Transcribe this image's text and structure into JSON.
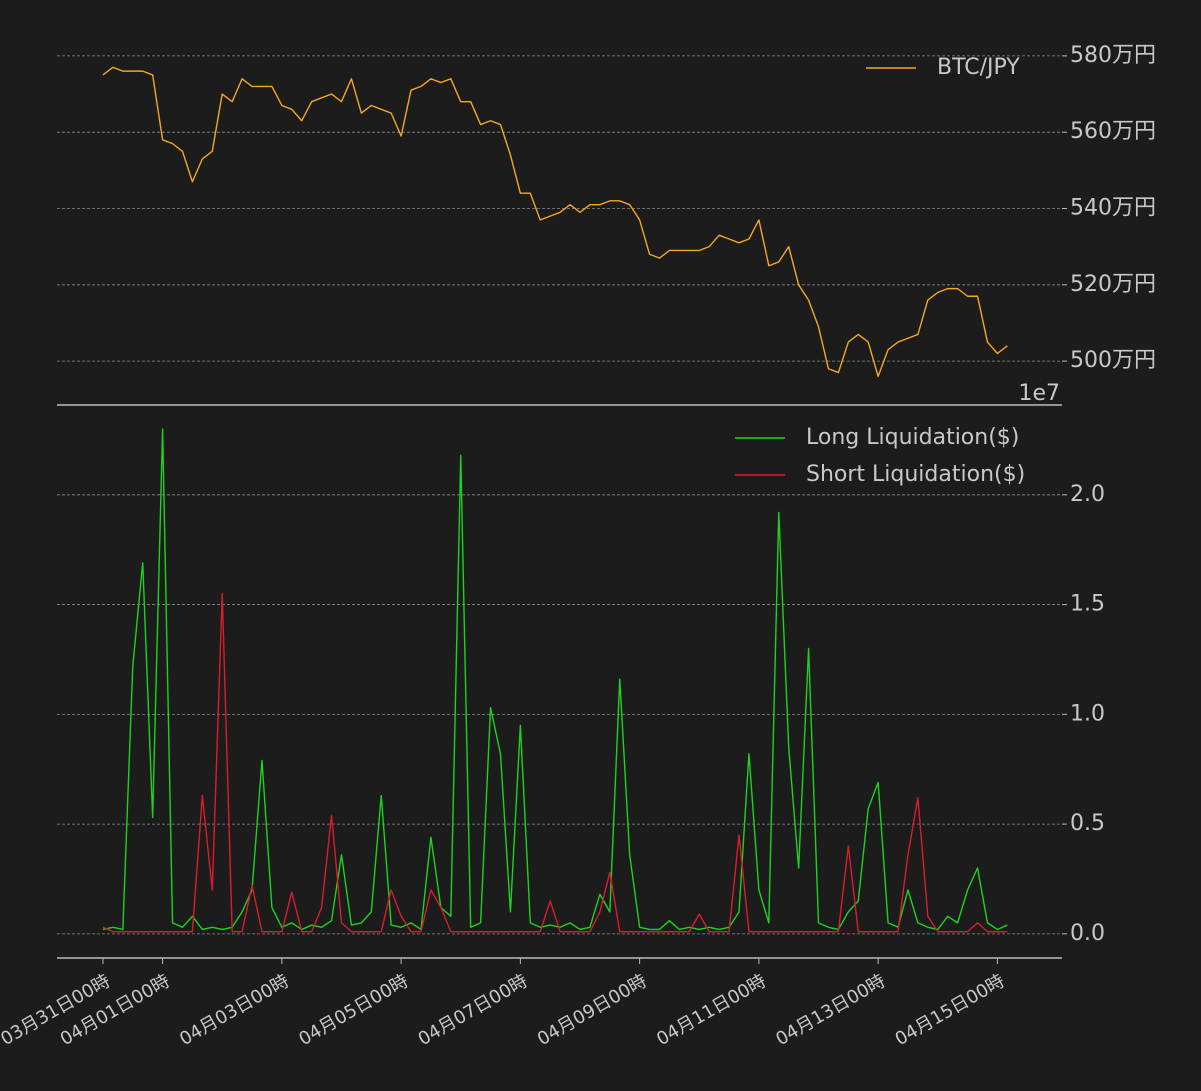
{
  "chart_data": [
    {
      "type": "line",
      "x": [
        "03-31 00:00",
        "03-31 04:00",
        "03-31 08:00",
        "03-31 12:00",
        "03-31 16:00",
        "03-31 20:00",
        "04-01 00:00",
        "04-01 04:00",
        "04-01 08:00",
        "04-01 12:00",
        "04-01 16:00",
        "04-01 20:00",
        "04-02 00:00",
        "04-02 04:00",
        "04-02 08:00",
        "04-02 12:00",
        "04-02 16:00",
        "04-02 20:00",
        "04-03 00:00",
        "04-03 04:00",
        "04-03 08:00",
        "04-03 12:00",
        "04-03 16:00",
        "04-03 20:00",
        "04-04 00:00",
        "04-04 04:00",
        "04-04 08:00",
        "04-04 12:00",
        "04-04 16:00",
        "04-04 20:00",
        "04-05 00:00",
        "04-05 04:00",
        "04-05 08:00",
        "04-05 12:00",
        "04-05 16:00",
        "04-05 20:00",
        "04-06 00:00",
        "04-06 04:00",
        "04-06 08:00",
        "04-06 12:00",
        "04-06 16:00",
        "04-06 20:00",
        "04-07 00:00",
        "04-07 04:00",
        "04-07 08:00",
        "04-07 12:00",
        "04-07 16:00",
        "04-07 20:00",
        "04-08 00:00",
        "04-08 04:00",
        "04-08 08:00",
        "04-08 12:00",
        "04-08 16:00",
        "04-08 20:00",
        "04-09 00:00",
        "04-09 04:00",
        "04-09 08:00",
        "04-09 12:00",
        "04-09 16:00",
        "04-09 20:00",
        "04-10 00:00",
        "04-10 04:00",
        "04-10 08:00",
        "04-10 12:00",
        "04-10 16:00",
        "04-10 20:00",
        "04-11 00:00",
        "04-11 04:00",
        "04-11 08:00",
        "04-11 12:00",
        "04-11 16:00",
        "04-11 20:00",
        "04-12 00:00",
        "04-12 04:00",
        "04-12 08:00",
        "04-12 12:00",
        "04-12 16:00",
        "04-12 20:00",
        "04-13 00:00",
        "04-13 04:00",
        "04-13 08:00",
        "04-13 12:00",
        "04-13 16:00",
        "04-13 20:00",
        "04-14 00:00",
        "04-14 04:00",
        "04-14 08:00",
        "04-14 12:00",
        "04-14 16:00",
        "04-14 20:00",
        "04-15 00:00",
        "04-15 04:00"
      ],
      "xlim": [
        "03-30 05:30",
        "04-16 02:00"
      ],
      "ylim": [
        488.5,
        589.4
      ],
      "yticks": [
        {
          "value": 500,
          "label": "500万円"
        },
        {
          "value": 520,
          "label": "520万円"
        },
        {
          "value": 540,
          "label": "540万円"
        },
        {
          "value": 560,
          "label": "560万円"
        },
        {
          "value": 580,
          "label": "580万円"
        }
      ],
      "grid": true,
      "legend": "upper right",
      "series": [
        {
          "name": "BTC/JPY",
          "color": "#f5a623",
          "values": [
            575,
            577,
            576,
            576,
            576,
            575,
            558,
            557,
            555,
            547,
            553,
            555,
            570,
            568,
            574,
            572,
            572,
            572,
            567,
            566,
            563,
            568,
            569,
            570,
            568,
            574,
            565,
            567,
            566,
            565,
            559,
            571,
            572,
            574,
            573,
            574,
            568,
            568,
            562,
            563,
            562,
            554,
            544,
            544,
            537,
            538,
            539,
            541,
            539,
            541,
            541,
            542,
            542,
            541,
            537,
            528,
            527,
            529,
            529,
            529,
            529,
            530,
            533,
            532,
            531,
            532,
            537,
            525,
            526,
            530,
            520,
            516,
            509,
            498,
            497,
            505,
            507,
            505,
            496,
            503,
            505,
            506,
            507,
            516,
            518,
            519,
            519,
            517,
            517,
            505,
            502,
            504
          ]
        }
      ]
    },
    {
      "type": "line",
      "x": [
        "03-31 00:00",
        "03-31 04:00",
        "03-31 08:00",
        "03-31 12:00",
        "03-31 16:00",
        "03-31 20:00",
        "04-01 00:00",
        "04-01 04:00",
        "04-01 08:00",
        "04-01 12:00",
        "04-01 16:00",
        "04-01 20:00",
        "04-02 00:00",
        "04-02 04:00",
        "04-02 08:00",
        "04-02 12:00",
        "04-02 16:00",
        "04-02 20:00",
        "04-03 00:00",
        "04-03 04:00",
        "04-03 08:00",
        "04-03 12:00",
        "04-03 16:00",
        "04-03 20:00",
        "04-04 00:00",
        "04-04 04:00",
        "04-04 08:00",
        "04-04 12:00",
        "04-04 16:00",
        "04-04 20:00",
        "04-05 00:00",
        "04-05 04:00",
        "04-05 08:00",
        "04-05 12:00",
        "04-05 16:00",
        "04-05 20:00",
        "04-06 00:00",
        "04-06 04:00",
        "04-06 08:00",
        "04-06 12:00",
        "04-06 16:00",
        "04-06 20:00",
        "04-07 00:00",
        "04-07 04:00",
        "04-07 08:00",
        "04-07 12:00",
        "04-07 16:00",
        "04-07 20:00",
        "04-08 00:00",
        "04-08 04:00",
        "04-08 08:00",
        "04-08 12:00",
        "04-08 16:00",
        "04-08 20:00",
        "04-09 00:00",
        "04-09 04:00",
        "04-09 08:00",
        "04-09 12:00",
        "04-09 16:00",
        "04-09 20:00",
        "04-10 00:00",
        "04-10 04:00",
        "04-10 08:00",
        "04-10 12:00",
        "04-10 16:00",
        "04-10 20:00",
        "04-11 00:00",
        "04-11 04:00",
        "04-11 08:00",
        "04-11 12:00",
        "04-11 16:00",
        "04-11 20:00",
        "04-12 00:00",
        "04-12 04:00",
        "04-12 08:00",
        "04-12 12:00",
        "04-12 16:00",
        "04-12 20:00",
        "04-13 00:00",
        "04-13 04:00",
        "04-13 08:00",
        "04-13 12:00",
        "04-13 16:00",
        "04-13 20:00",
        "04-14 00:00",
        "04-14 04:00",
        "04-14 08:00",
        "04-14 12:00",
        "04-14 16:00",
        "04-14 20:00",
        "04-15 00:00",
        "04-15 04:00"
      ],
      "xlim": [
        "03-30 05:30",
        "04-16 02:00"
      ],
      "xticks": [
        {
          "value": "03-31 00:00",
          "label": "03月31日00時"
        },
        {
          "value": "04-01 00:00",
          "label": "04月01日00時"
        },
        {
          "value": "04-03 00:00",
          "label": "04月03日00時"
        },
        {
          "value": "04-05 00:00",
          "label": "04月05日00時"
        },
        {
          "value": "04-07 00:00",
          "label": "04月07日00時"
        },
        {
          "value": "04-09 00:00",
          "label": "04月09日00時"
        },
        {
          "value": "04-11 00:00",
          "label": "04月11日00時"
        },
        {
          "value": "04-13 00:00",
          "label": "04月13日00時"
        },
        {
          "value": "04-15 00:00",
          "label": "04月15日00時"
        }
      ],
      "ylim": [
        -0.11,
        2.35
      ],
      "yticks": [
        {
          "value": 0,
          "label": "0.0"
        },
        0.5,
        {
          "value": 1,
          "label": "1.0"
        },
        1.5,
        {
          "value": 2,
          "label": "2.0"
        }
      ],
      "y_offset_label": "1e7",
      "grid": true,
      "legend": "upper right",
      "series": [
        {
          "name": "Long Liquidation($)",
          "color": "#1fd21f",
          "values": [
            0.02,
            0.03,
            0.02,
            1.22,
            1.69,
            0.53,
            2.3,
            0.05,
            0.03,
            0.08,
            0.02,
            0.03,
            0.02,
            0.03,
            0.1,
            0.2,
            0.79,
            0.12,
            0.03,
            0.05,
            0.02,
            0.04,
            0.03,
            0.06,
            0.36,
            0.04,
            0.05,
            0.1,
            0.63,
            0.04,
            0.03,
            0.05,
            0.02,
            0.44,
            0.12,
            0.08,
            2.18,
            0.03,
            0.05,
            1.03,
            0.82,
            0.1,
            0.95,
            0.05,
            0.03,
            0.04,
            0.03,
            0.05,
            0.02,
            0.03,
            0.18,
            0.1,
            1.16,
            0.36,
            0.03,
            0.02,
            0.02,
            0.06,
            0.02,
            0.03,
            0.02,
            0.03,
            0.02,
            0.03,
            0.1,
            0.82,
            0.2,
            0.05,
            1.92,
            0.85,
            0.3,
            1.3,
            0.05,
            0.03,
            0.02,
            0.1,
            0.15,
            0.57,
            0.69,
            0.05,
            0.03,
            0.2,
            0.05,
            0.03,
            0.02,
            0.08,
            0.05,
            0.2,
            0.3,
            0.05,
            0.02,
            0.04
          ]
        },
        {
          "name": "Short Liquidation($)",
          "color": "#d81e2c",
          "values": [
            0.03,
            0.01,
            0.01,
            0.01,
            0.01,
            0.01,
            0.01,
            0.01,
            0.01,
            0.01,
            0.63,
            0.2,
            1.55,
            0.01,
            0.01,
            0.22,
            0.01,
            0.01,
            0.01,
            0.19,
            0.01,
            0.01,
            0.12,
            0.54,
            0.05,
            0.01,
            0.01,
            0.01,
            0.01,
            0.2,
            0.08,
            0.01,
            0.01,
            0.2,
            0.12,
            0.01,
            0.01,
            0.01,
            0.01,
            0.01,
            0.01,
            0.01,
            0.01,
            0.01,
            0.01,
            0.15,
            0.01,
            0.01,
            0.01,
            0.01,
            0.1,
            0.28,
            0.01,
            0.01,
            0.01,
            0.01,
            0.01,
            0.01,
            0.01,
            0.01,
            0.09,
            0.01,
            0.01,
            0.01,
            0.45,
            0.01,
            0.01,
            0.01,
            0.01,
            0.01,
            0.01,
            0.01,
            0.01,
            0.01,
            0.01,
            0.4,
            0.01,
            0.01,
            0.01,
            0.01,
            0.01,
            0.36,
            0.62,
            0.08,
            0.01,
            0.01,
            0.01,
            0.01,
            0.05,
            0.01,
            0.01,
            0.01
          ]
        }
      ]
    }
  ]
}
